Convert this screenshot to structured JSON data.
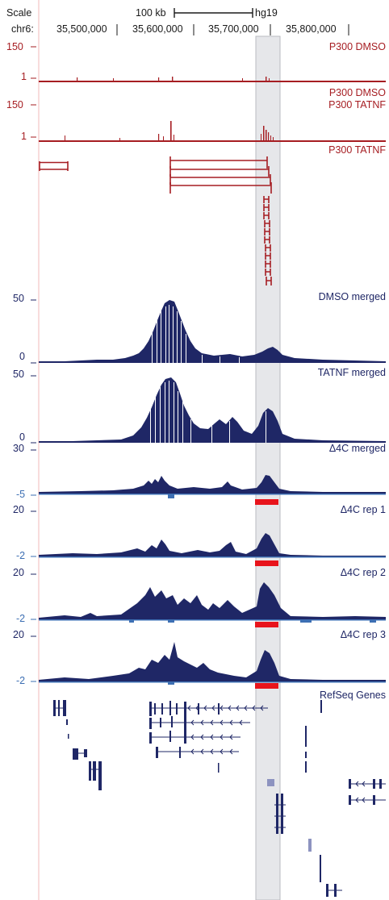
{
  "header": {
    "scale_label": "Scale",
    "scale_bar_label": "100 kb",
    "assembly": "hg19",
    "chrom_label": "chr6:",
    "positions": [
      "35,500,000",
      "35,600,000",
      "35,700,000",
      "35,800,000"
    ]
  },
  "tracks": [
    {
      "id": "p300-dmso",
      "name": "P300 DMSO",
      "top_value": "150",
      "bottom_value": "1",
      "color": "#a61d22"
    },
    {
      "id": "p300-tatnf",
      "name": "P300 TATNF",
      "top_value": "150",
      "bottom_value": "1",
      "color": "#a61d22"
    },
    {
      "id": "p300-tatnf-peaks",
      "name": "P300 TATNF",
      "color": "#a61d22"
    },
    {
      "id": "dmso-merged",
      "name": "DMSO merged",
      "top_value": "50",
      "bottom_value": "0",
      "color": "#1f2766"
    },
    {
      "id": "tatnf-merged",
      "name": "TATNF merged",
      "top_value": "50",
      "bottom_value": "0",
      "color": "#1f2766"
    },
    {
      "id": "d4c-merged",
      "name": "Δ4C merged",
      "top_value": "30",
      "bottom_value": "-5",
      "color": "#1f2766"
    },
    {
      "id": "d4c-rep1",
      "name": "Δ4C rep 1",
      "top_value": "20",
      "bottom_value": "-2",
      "color": "#1f2766"
    },
    {
      "id": "d4c-rep2",
      "name": "Δ4C rep 2",
      "top_value": "20",
      "bottom_value": "-2",
      "color": "#1f2766"
    },
    {
      "id": "d4c-rep3",
      "name": "Δ4C rep 3",
      "top_value": "20",
      "bottom_value": "-2",
      "color": "#1f2766"
    },
    {
      "id": "refseq",
      "name": "RefSeq Genes",
      "color": "#1f2766"
    }
  ],
  "colors": {
    "p300": "#a61d22",
    "signal": "#1f2766",
    "negative": "#3d6fb3",
    "highlight": "#e6e7ea",
    "called_region": "#e8141c"
  }
}
